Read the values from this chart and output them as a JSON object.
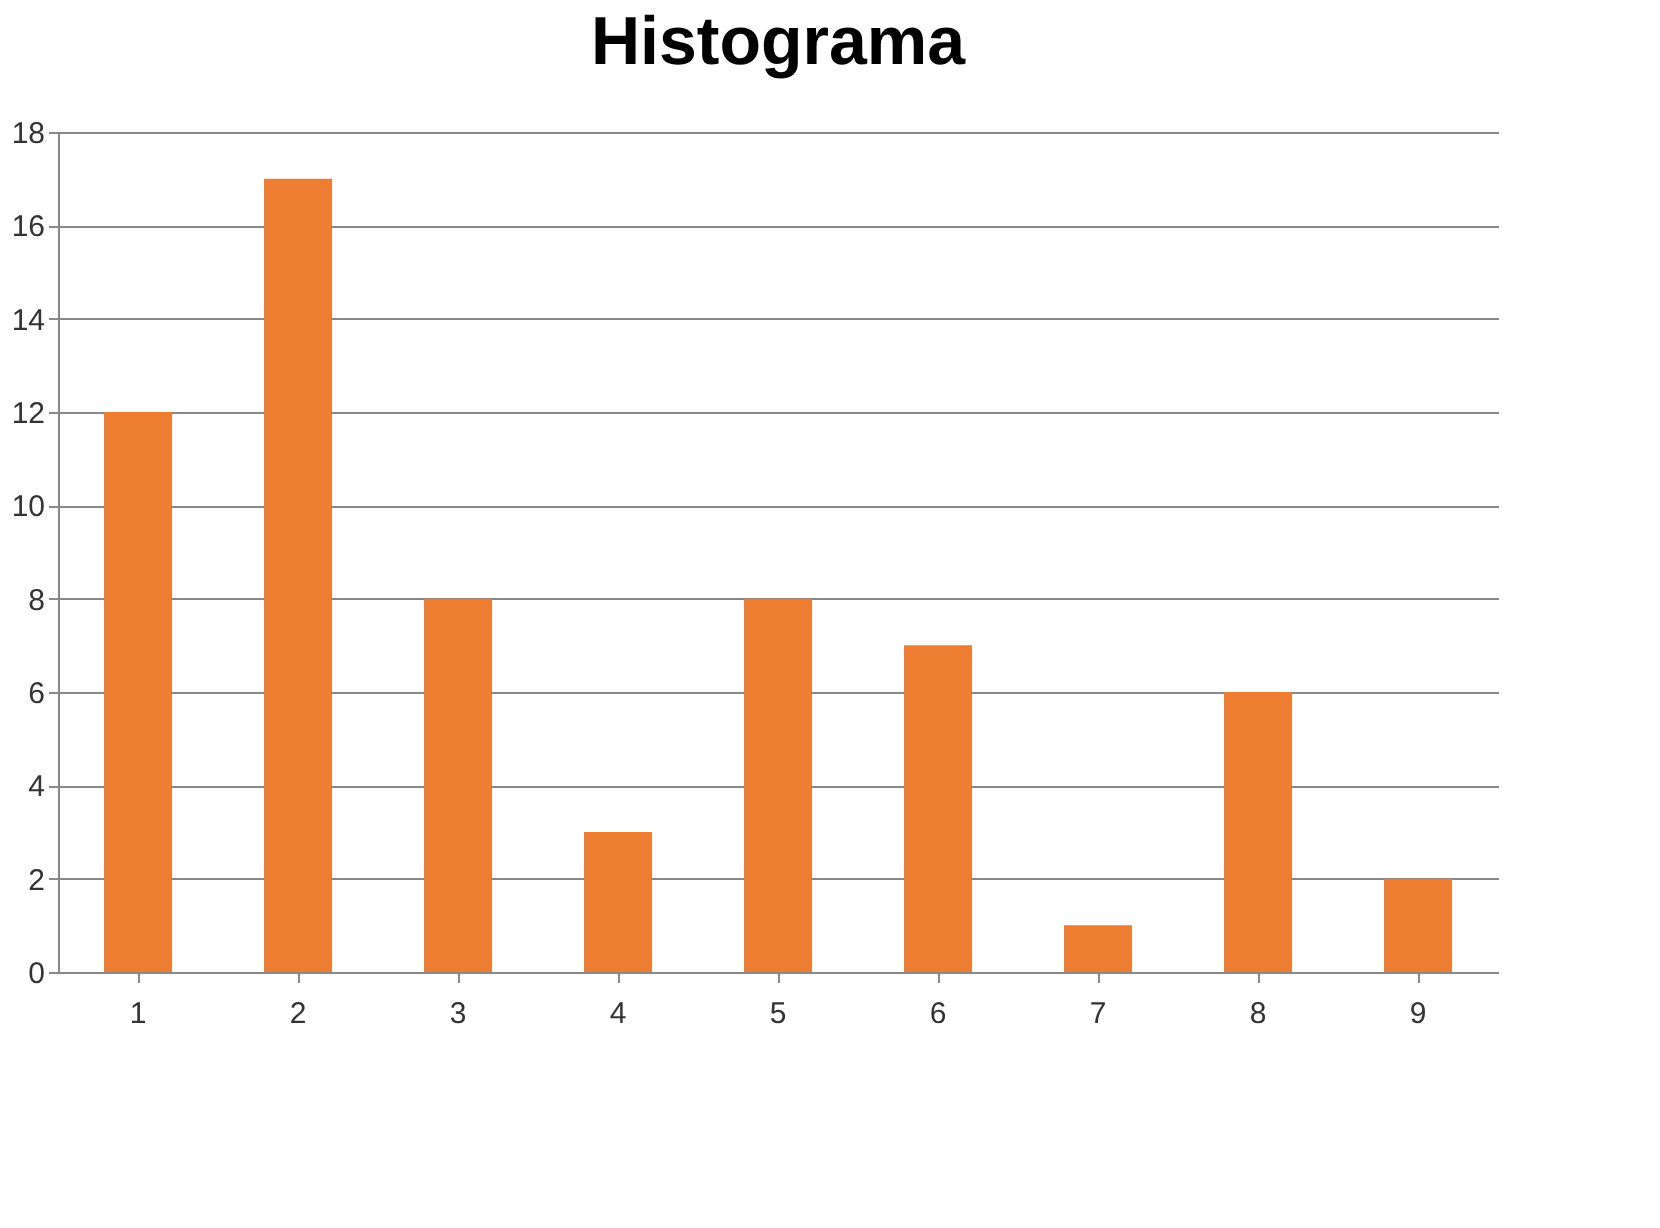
{
  "chart_data": {
    "type": "bar",
    "title": "Histograma",
    "categories": [
      "1",
      "2",
      "3",
      "4",
      "5",
      "6",
      "7",
      "8",
      "9"
    ],
    "values": [
      12,
      17,
      8,
      3,
      8,
      7,
      1,
      6,
      2
    ],
    "color": "#ed7d31",
    "ylim": [
      0,
      18
    ],
    "yticks": [
      0,
      2,
      4,
      6,
      8,
      10,
      12,
      14,
      16,
      18
    ],
    "grid": "y"
  }
}
